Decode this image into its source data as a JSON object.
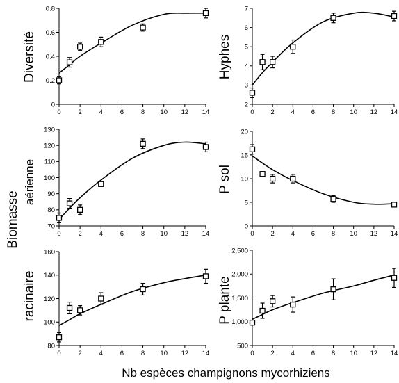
{
  "figure": {
    "xlabel": "Nb espèces champignons mycorhiziens",
    "shared_ylabels": {
      "biomasse_upper": "aérienne",
      "biomasse_lower": "racinaire",
      "biomasse_common": "Biomasse"
    }
  },
  "chart_data": [
    {
      "id": "diversite",
      "type": "scatter",
      "ylabel": "Diversité",
      "x": [
        0,
        1,
        2,
        4,
        8,
        14
      ],
      "values": [
        0.2,
        0.35,
        0.48,
        0.52,
        0.64,
        0.76
      ],
      "errors": [
        0.03,
        0.04,
        0.03,
        0.04,
        0.03,
        0.04
      ],
      "fit": [
        0.26,
        0.33,
        0.4,
        0.51,
        0.66,
        0.75,
        0.76,
        0.76
      ],
      "fit_x": [
        0,
        1,
        2,
        4,
        7,
        10,
        12,
        14
      ],
      "xlim": [
        0,
        14
      ],
      "ylim": [
        0,
        0.8
      ],
      "xticks": [
        0,
        2,
        4,
        6,
        8,
        10,
        12,
        14
      ],
      "yticks": [
        0,
        0.2,
        0.4,
        0.6,
        0.8
      ],
      "ytick_labels": [
        "0",
        "0.2",
        "0.4",
        "0.6",
        "0.8"
      ]
    },
    {
      "id": "hyphes",
      "type": "scatter",
      "ylabel": "Hyphes",
      "x": [
        0,
        1,
        2,
        4,
        8,
        14
      ],
      "values": [
        2.6,
        4.2,
        4.2,
        5.0,
        6.5,
        6.6
      ],
      "errors": [
        0.25,
        0.4,
        0.3,
        0.35,
        0.25,
        0.25
      ],
      "fit": [
        3.0,
        3.65,
        4.2,
        5.2,
        6.3,
        6.75,
        6.75,
        6.55
      ],
      "fit_x": [
        0,
        1,
        2,
        4,
        7,
        10,
        12,
        14
      ],
      "xlim": [
        0,
        14
      ],
      "ylim": [
        2,
        7
      ],
      "xticks": [
        0,
        2,
        4,
        6,
        8,
        10,
        12,
        14
      ],
      "yticks": [
        2,
        3,
        4,
        5,
        6,
        7
      ],
      "ytick_labels": [
        "2",
        "3",
        "4",
        "5",
        "6",
        "7"
      ]
    },
    {
      "id": "biomasse-aerienne",
      "type": "scatter",
      "ylabel": "",
      "x": [
        0,
        1,
        2,
        4,
        8,
        14
      ],
      "values": [
        75,
        84,
        80,
        96,
        121,
        119
      ],
      "errors": [
        3,
        3,
        3,
        0,
        3,
        3
      ],
      "fit": [
        74,
        81,
        87.5,
        98.5,
        112,
        120,
        122,
        121
      ],
      "fit_x": [
        0,
        1,
        2,
        4,
        7,
        10,
        12,
        14
      ],
      "xlim": [
        0,
        14
      ],
      "ylim": [
        70,
        130
      ],
      "xticks": [
        0,
        2,
        4,
        6,
        8,
        10,
        12,
        14
      ],
      "yticks": [
        70,
        80,
        90,
        100,
        110,
        120,
        130
      ],
      "ytick_labels": [
        "70",
        "80",
        "90",
        "100",
        "110",
        "120",
        "130"
      ]
    },
    {
      "id": "p-sol",
      "type": "scatter",
      "ylabel": "P sol",
      "x": [
        0,
        1,
        2,
        4,
        8,
        14
      ],
      "values": [
        16.2,
        11.0,
        10.0,
        10.0,
        5.7,
        4.5
      ],
      "errors": [
        1.0,
        0.3,
        0.9,
        0.9,
        0.7,
        0.3
      ],
      "fit": [
        14.8,
        13.3,
        11.9,
        9.6,
        6.8,
        5.0,
        4.6,
        4.7
      ],
      "fit_x": [
        0,
        1,
        2,
        4,
        7,
        10,
        12,
        14
      ],
      "xlim": [
        0,
        14
      ],
      "ylim": [
        0,
        20
      ],
      "xticks": [
        0,
        2,
        4,
        6,
        8,
        10,
        12,
        14
      ],
      "yticks": [
        0,
        5,
        10,
        15,
        20
      ],
      "ytick_labels": [
        "0",
        "5",
        "10",
        "15",
        "20"
      ]
    },
    {
      "id": "biomasse-racinaire",
      "type": "scatter",
      "ylabel": "racinaire",
      "x": [
        0,
        1,
        2,
        4,
        8,
        14
      ],
      "values": [
        87,
        112,
        110,
        120,
        128,
        139
      ],
      "errors": [
        4,
        5,
        4,
        5,
        5,
        6
      ],
      "fit": [
        97,
        102,
        107,
        115,
        126,
        133.5,
        137,
        140
      ],
      "fit_x": [
        0,
        1,
        2,
        4,
        7,
        10,
        12,
        14
      ],
      "xlim": [
        0,
        14
      ],
      "ylim": [
        80,
        160
      ],
      "xticks": [
        0,
        2,
        4,
        6,
        8,
        10,
        12,
        14
      ],
      "yticks": [
        80,
        100,
        120,
        140,
        160
      ],
      "ytick_labels": [
        "80",
        "100",
        "120",
        "140",
        "160"
      ]
    },
    {
      "id": "p-plante",
      "type": "scatter",
      "ylabel": "P plante",
      "x": [
        0,
        1,
        2,
        4,
        8,
        14
      ],
      "values": [
        980,
        1230,
        1430,
        1360,
        1680,
        1920
      ],
      "errors": [
        50,
        160,
        120,
        160,
        220,
        200
      ],
      "fit": [
        1050,
        1150,
        1250,
        1400,
        1600,
        1750,
        1870,
        1980
      ],
      "fit_x": [
        0,
        1,
        2,
        4,
        7,
        10,
        12,
        14
      ],
      "xlim": [
        0,
        14
      ],
      "ylim": [
        500,
        2500
      ],
      "xticks": [
        0,
        2,
        4,
        6,
        8,
        10,
        12,
        14
      ],
      "yticks": [
        500,
        1000,
        1500,
        2000,
        2500
      ],
      "ytick_labels": [
        "500",
        "1,000",
        "1,500",
        "2,000",
        "2,500"
      ]
    }
  ]
}
